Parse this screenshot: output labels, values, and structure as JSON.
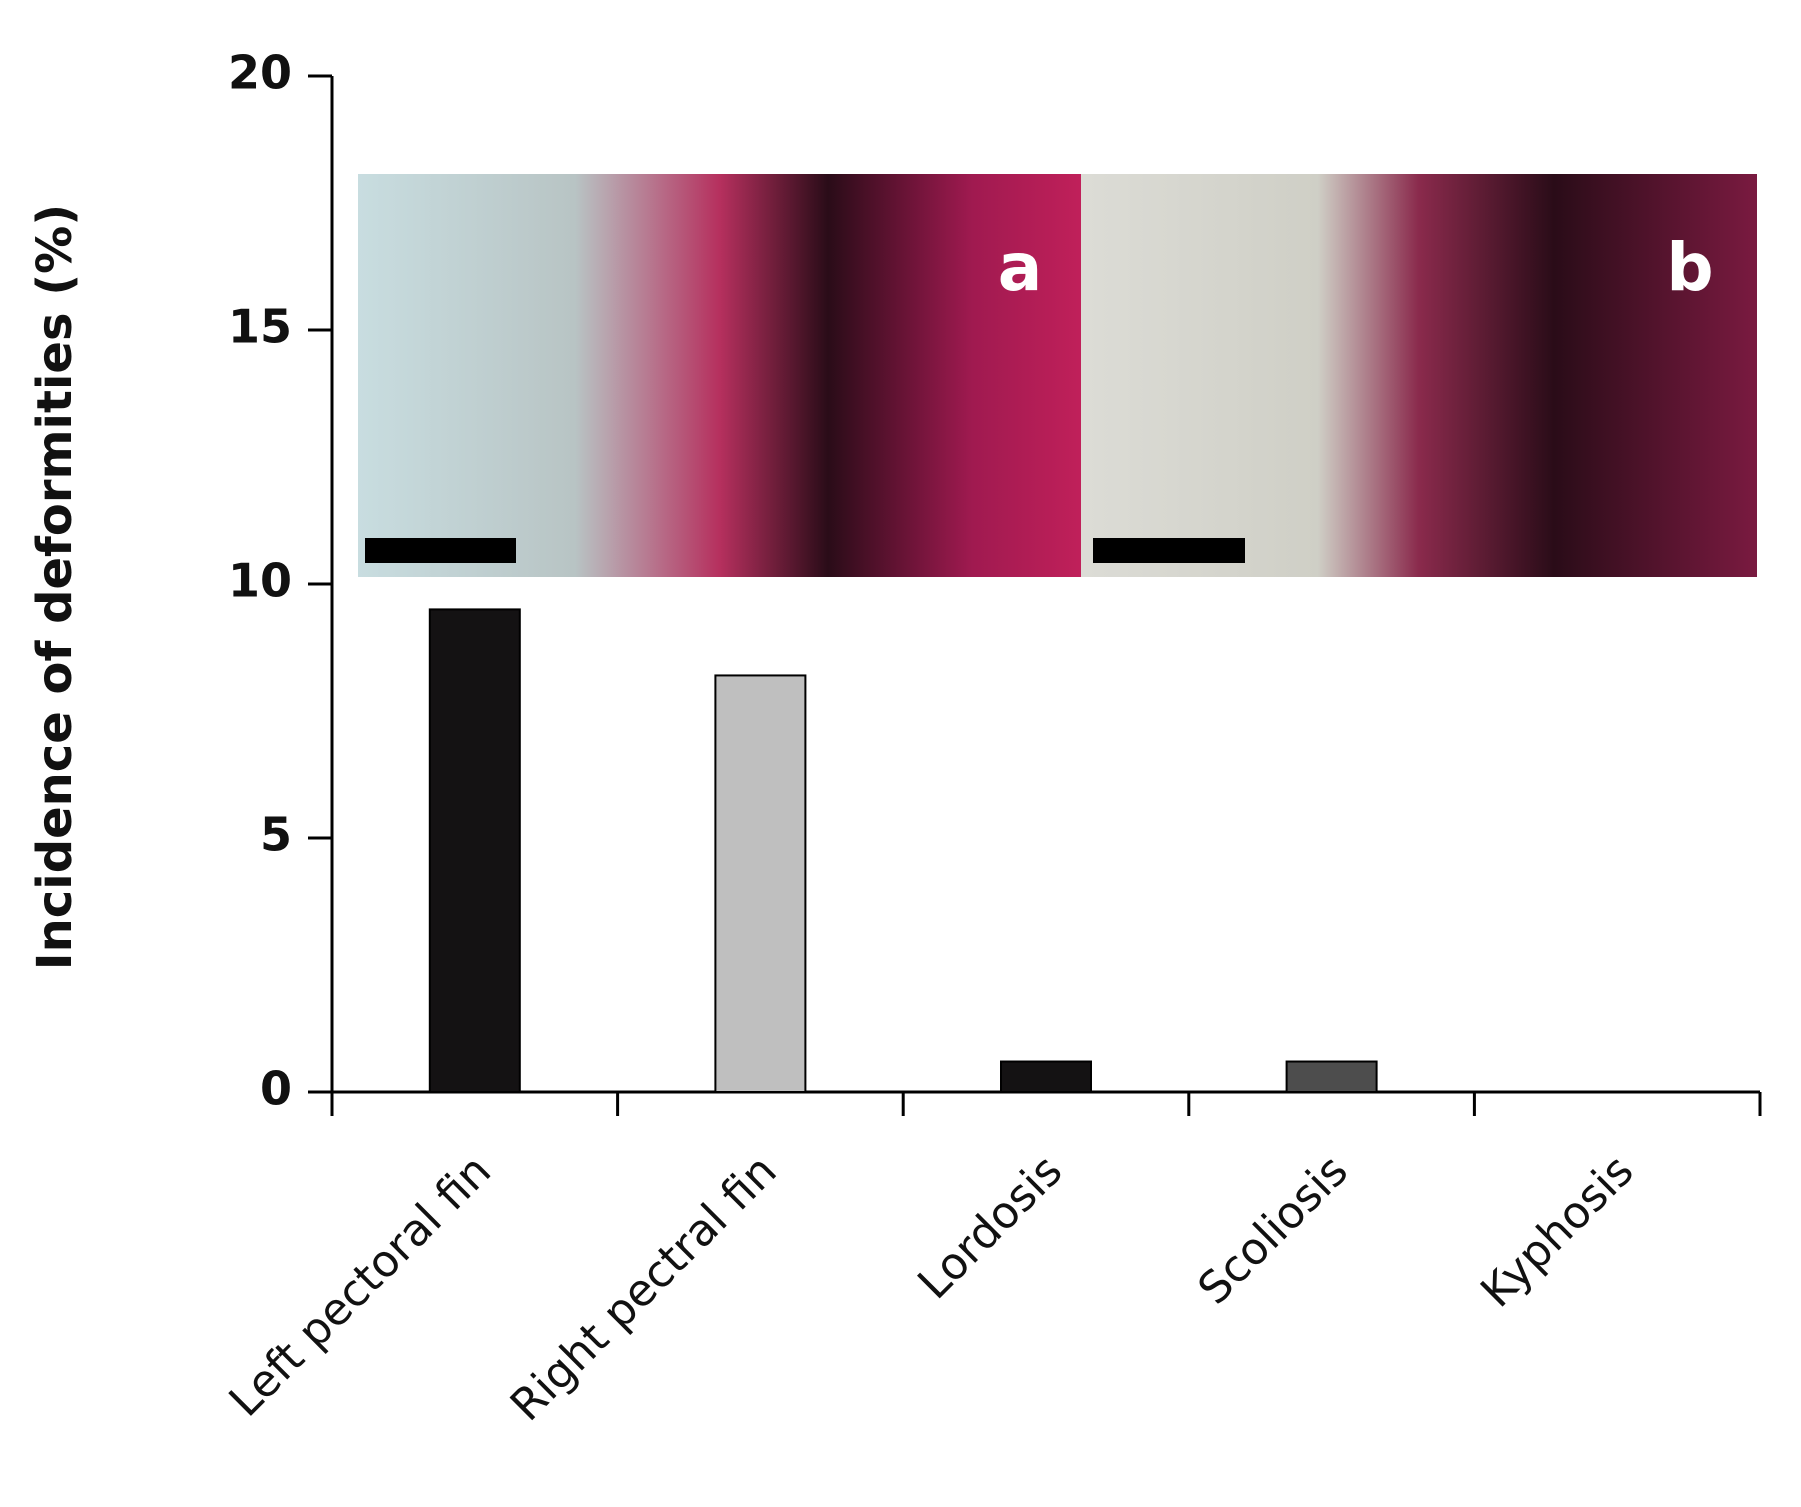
{
  "chart_data": {
    "type": "bar",
    "y_label": "Incidence of deformities  (%)",
    "categories": [
      "Left pectoral fin",
      "Right pectral fin",
      "Lordosis",
      "Scoliosis",
      "Kyphosis"
    ],
    "values": [
      9.5,
      8.2,
      0.6,
      0.6,
      0
    ],
    "colors": [
      "#141213",
      "#bfbfbf",
      "#141213",
      "#4d4d4d",
      "#141213"
    ],
    "ylim": [
      0,
      20
    ],
    "yticks": [
      0,
      5,
      10,
      15,
      20
    ],
    "grid": false,
    "annotations": [
      "a",
      "b"
    ]
  }
}
